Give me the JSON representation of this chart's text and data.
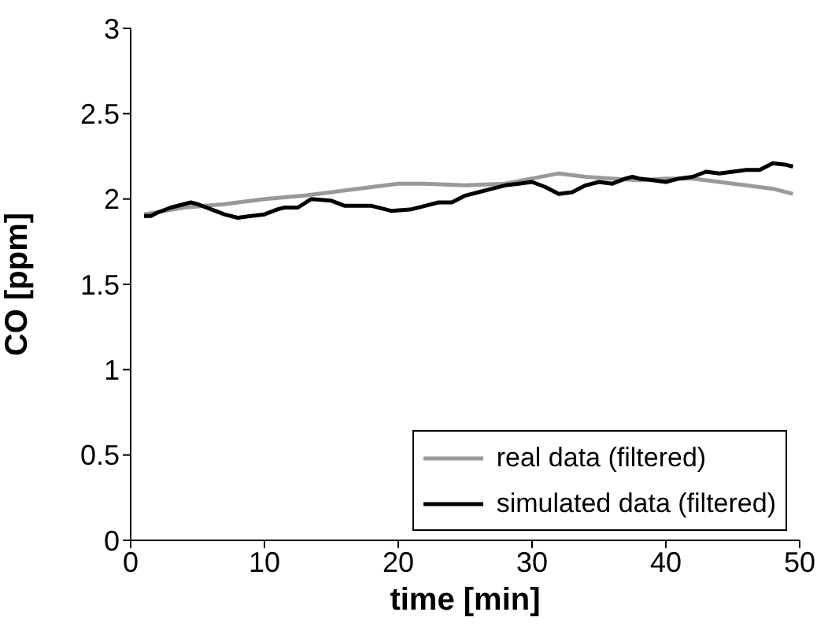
{
  "chart_data": {
    "type": "line",
    "xlabel": "time [min]",
    "ylabel": "CO [ppm]",
    "xlim": [
      0,
      50
    ],
    "xticks": [
      0,
      10,
      20,
      30,
      40,
      50
    ],
    "ylim": [
      0,
      3
    ],
    "yticks": [
      0,
      0.5,
      1,
      1.5,
      2,
      2.5,
      3
    ],
    "grid": false,
    "legend": "bottom right",
    "line_style": "solid",
    "marker": "none",
    "series": [
      {
        "name": "real data (filtered)",
        "color": "#999999",
        "x": [
          1,
          4,
          7,
          10,
          13,
          15,
          18,
          20,
          22,
          25,
          28,
          30,
          32,
          34,
          36,
          38,
          40,
          42,
          44,
          46,
          48,
          49.5
        ],
        "values": [
          1.91,
          1.95,
          1.97,
          2.0,
          2.02,
          2.04,
          2.07,
          2.09,
          2.09,
          2.08,
          2.09,
          2.12,
          2.15,
          2.13,
          2.12,
          2.11,
          2.12,
          2.12,
          2.1,
          2.08,
          2.06,
          2.03
        ]
      },
      {
        "name": "simulated data (filtered)",
        "color": "#000000",
        "x": [
          1,
          1.5,
          2,
          3,
          4.5,
          5,
          6,
          7,
          8,
          9,
          10,
          11,
          11.5,
          12.5,
          13.5,
          15,
          16,
          17,
          18,
          19,
          19.5,
          21,
          22,
          23,
          24,
          25,
          26,
          27,
          28,
          29,
          30,
          31,
          32,
          33,
          34,
          35,
          36,
          37,
          37.5,
          38,
          39,
          40,
          41,
          42,
          43,
          44,
          45,
          46,
          47,
          48,
          49,
          49.5
        ],
        "values": [
          1.9,
          1.9,
          1.92,
          1.95,
          1.98,
          1.97,
          1.94,
          1.91,
          1.89,
          1.9,
          1.91,
          1.94,
          1.95,
          1.95,
          2.0,
          1.99,
          1.96,
          1.96,
          1.96,
          1.94,
          1.93,
          1.94,
          1.96,
          1.98,
          1.98,
          2.02,
          2.04,
          2.06,
          2.08,
          2.09,
          2.1,
          2.07,
          2.03,
          2.04,
          2.08,
          2.1,
          2.09,
          2.12,
          2.13,
          2.12,
          2.11,
          2.1,
          2.12,
          2.13,
          2.16,
          2.15,
          2.16,
          2.17,
          2.17,
          2.21,
          2.2,
          2.19
        ]
      }
    ]
  }
}
